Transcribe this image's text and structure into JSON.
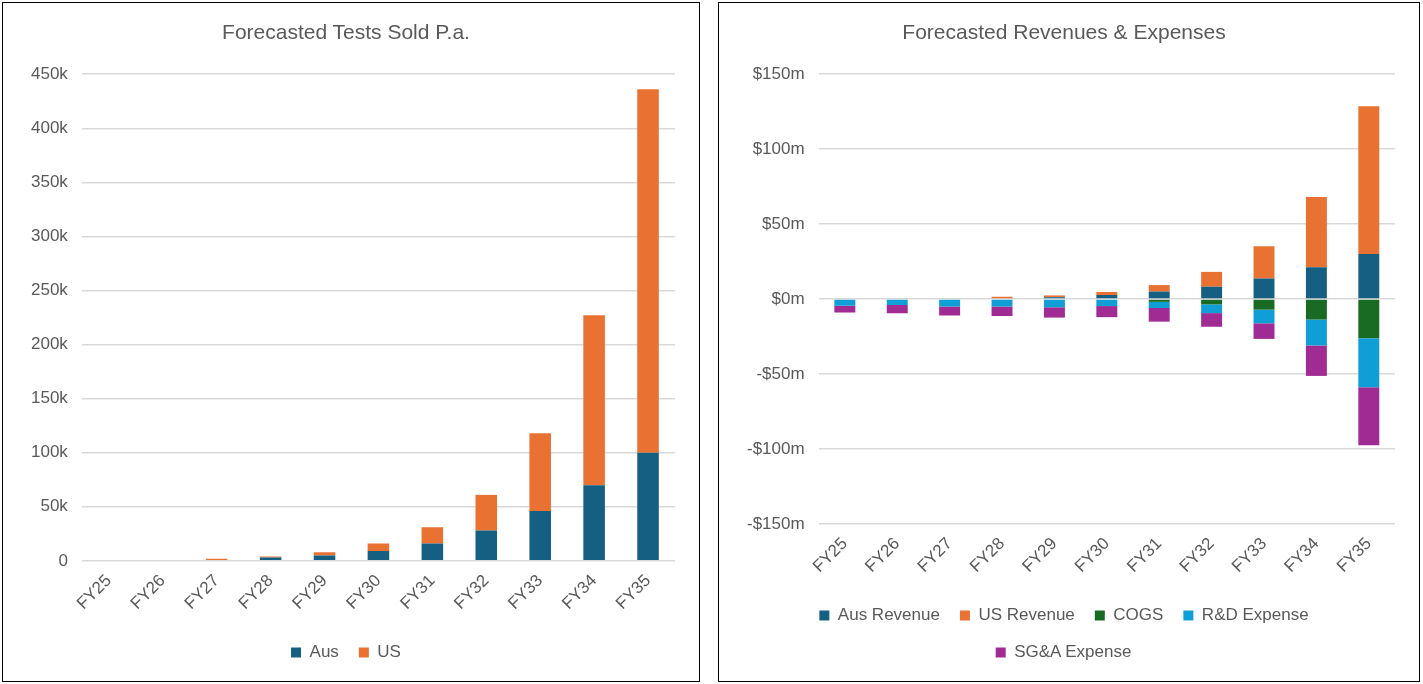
{
  "chart_data": [
    {
      "type": "bar",
      "title": "Forecasted Tests Sold P.a.",
      "categories": [
        "FY25",
        "FY26",
        "FY27",
        "FY28",
        "FY29",
        "FY30",
        "FY31",
        "FY32",
        "FY33",
        "FY34",
        "FY35"
      ],
      "stacked": true,
      "series": [
        {
          "name": "Aus",
          "color": "#156082",
          "values": [
            0,
            0,
            null,
            3,
            5,
            9,
            16,
            28,
            46,
            70,
            100
          ]
        },
        {
          "name": "US",
          "color": "#e97132",
          "values": [
            0,
            0,
            2,
            1,
            3,
            7,
            15,
            33,
            72,
            157,
            336
          ]
        }
      ],
      "ylim": [
        0,
        450
      ],
      "yticks": [
        {
          "value": 0,
          "label": "0"
        },
        {
          "value": 50,
          "label": "50k"
        },
        {
          "value": 100,
          "label": "100k"
        },
        {
          "value": 150,
          "label": "150k"
        },
        {
          "value": 200,
          "label": "200k"
        },
        {
          "value": 250,
          "label": "250k"
        },
        {
          "value": 300,
          "label": "300k"
        },
        {
          "value": 350,
          "label": "350k"
        },
        {
          "value": 400,
          "label": "400k"
        },
        {
          "value": 450,
          "label": "450k"
        }
      ],
      "grid": "y",
      "legend": "bottom"
    },
    {
      "type": "bar",
      "title": "Forecasted Revenues & Expenses",
      "categories": [
        "FY25",
        "FY26",
        "FY27",
        "FY28",
        "FY29",
        "FY30",
        "FY31",
        "FY32",
        "FY33",
        "FY34",
        "FY35"
      ],
      "stacked": true,
      "series": [
        {
          "name": "Aus Revenue",
          "color": "#156082",
          "values": [
            0,
            0,
            0,
            0,
            1.2,
            2.7,
            5,
            8.2,
            13.7,
            21.2,
            30
          ]
        },
        {
          "name": "US Revenue",
          "color": "#e97132",
          "values": [
            0,
            0,
            0,
            1.5,
            1.2,
            2,
            4.3,
            9.9,
            21.5,
            46.9,
            98.6
          ]
        },
        {
          "name": "COGS",
          "color": "#196b24",
          "values": [
            0,
            0,
            0,
            0,
            0,
            0,
            -1.9,
            -3.6,
            -7.1,
            -13.7,
            -26.1
          ]
        },
        {
          "name": "R&D Expense",
          "color": "#0f9ed5",
          "values": [
            -4.5,
            -4,
            -5,
            -5,
            -5.5,
            -4.7,
            -4.1,
            -5.8,
            -9.1,
            -17.3,
            -32.7
          ]
        },
        {
          "name": "SG&A Expense",
          "color": "#a02b93",
          "values": [
            -4.5,
            -5.5,
            -6,
            -6.3,
            -6.9,
            -7.4,
            -9.1,
            -9.1,
            -10.4,
            -20.3,
            -38.7
          ]
        }
      ],
      "ylim": [
        -150,
        150
      ],
      "yticks": [
        {
          "value": -150,
          "label": "-$150m"
        },
        {
          "value": -100,
          "label": "-$100m"
        },
        {
          "value": -50,
          "label": "-$50m"
        },
        {
          "value": 0,
          "label": "$0m"
        },
        {
          "value": 50,
          "label": "$50m"
        },
        {
          "value": 100,
          "label": "$100m"
        },
        {
          "value": 150,
          "label": "$150m"
        }
      ],
      "grid": "y",
      "legend": "bottom"
    }
  ]
}
